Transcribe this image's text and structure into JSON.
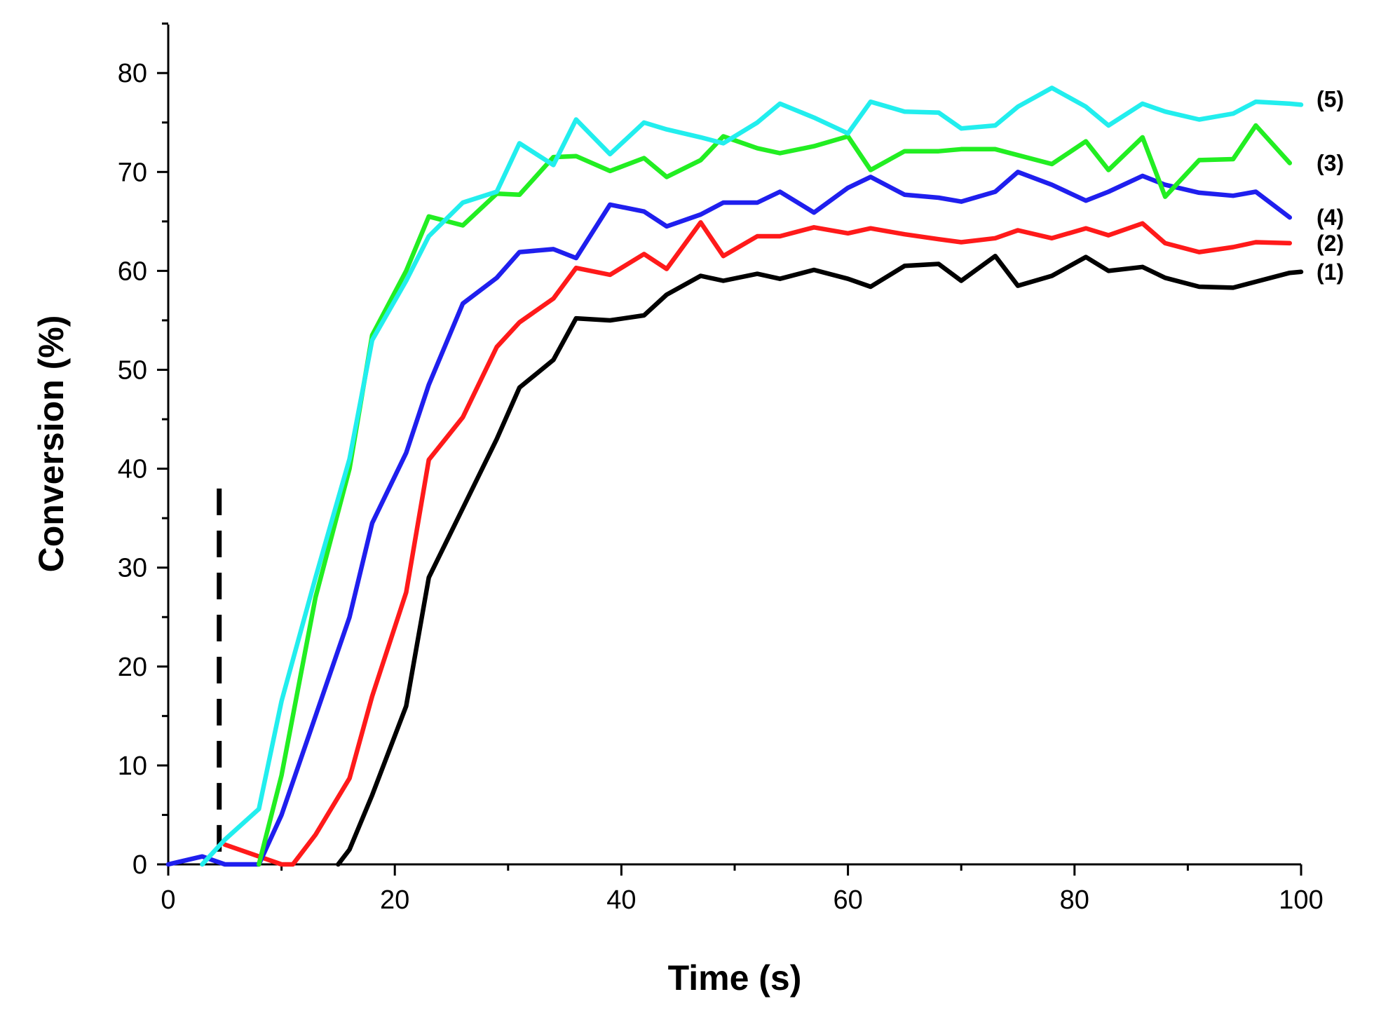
{
  "chart_data": {
    "type": "line",
    "xlabel": "Time (s)",
    "ylabel": "Conversion (%)",
    "xlim": [
      0,
      100
    ],
    "ylim": [
      0,
      85
    ],
    "xticks": [
      0,
      20,
      40,
      60,
      80,
      100
    ],
    "yticks": [
      0,
      10,
      20,
      30,
      40,
      50,
      60,
      70,
      80
    ],
    "grid": false,
    "marker_line": {
      "x": 4.5,
      "y_range": [
        0,
        38
      ],
      "style": "dashed",
      "color": "#000000"
    },
    "series": [
      {
        "name": "(1)",
        "color": "#000000",
        "x": [
          15,
          16,
          18,
          21,
          23,
          26,
          29,
          31,
          34,
          36,
          39,
          42,
          44,
          47,
          49,
          52,
          54,
          57,
          60,
          62,
          65,
          68,
          70,
          73,
          75,
          78,
          81,
          83,
          86,
          88,
          91,
          94,
          96,
          99,
          100
        ],
        "y": [
          0,
          1.5,
          7,
          16,
          29,
          36,
          43,
          48.2,
          51,
          55.2,
          55,
          55.5,
          57.6,
          59.5,
          59,
          59.7,
          59.2,
          60.1,
          59.2,
          58.4,
          60.5,
          60.7,
          59,
          61.5,
          58.5,
          59.5,
          61.4,
          60,
          60.4,
          59.3,
          58.4,
          58.3,
          58.9,
          59.8,
          59.9
        ]
      },
      {
        "name": "(2)",
        "color": "#ff1a1a",
        "x": [
          5,
          8,
          10,
          11,
          13,
          16,
          18,
          21,
          23,
          26,
          29,
          31,
          34,
          36,
          39,
          42,
          44,
          47,
          49,
          52,
          54,
          57,
          60,
          62,
          65,
          68,
          70,
          73,
          75,
          78,
          81,
          83,
          86,
          88,
          91,
          94,
          96,
          99
        ],
        "y": [
          2,
          0.8,
          0,
          0,
          3,
          8.7,
          17,
          27.5,
          40.9,
          45.2,
          52.3,
          54.8,
          57.2,
          60.3,
          59.6,
          61.7,
          60.2,
          64.9,
          61.5,
          63.5,
          63.5,
          64.4,
          63.8,
          64.3,
          63.7,
          63.2,
          62.9,
          63.3,
          64.1,
          63.3,
          64.3,
          63.6,
          64.8,
          62.8,
          61.9,
          62.4,
          62.9,
          62.8
        ]
      },
      {
        "name": "(3)",
        "color": "#22ee22",
        "x": [
          8,
          10,
          13,
          16,
          18,
          21,
          23,
          26,
          29,
          31,
          34,
          36,
          39,
          42,
          44,
          47,
          49,
          52,
          54,
          57,
          60,
          62,
          65,
          68,
          70,
          73,
          75,
          78,
          81,
          83,
          86,
          88,
          91,
          94,
          96,
          99
        ],
        "y": [
          0,
          9,
          27,
          40,
          53.5,
          60,
          65.5,
          64.6,
          67.8,
          67.7,
          71.5,
          71.6,
          70.1,
          71.4,
          69.5,
          71.2,
          73.6,
          72.4,
          71.9,
          72.6,
          73.6,
          70.2,
          72.1,
          72.1,
          72.3,
          72.3,
          71.7,
          70.8,
          73.1,
          70.2,
          73.5,
          67.5,
          71.2,
          71.3,
          74.7,
          70.9
        ]
      },
      {
        "name": "(4)",
        "color": "#1f1fee",
        "x": [
          0,
          3,
          5,
          8,
          10,
          13,
          16,
          18,
          21,
          23,
          26,
          29,
          31,
          34,
          36,
          39,
          42,
          44,
          47,
          49,
          52,
          54,
          57,
          60,
          62,
          65,
          68,
          70,
          73,
          75,
          78,
          81,
          83,
          86,
          88,
          91,
          94,
          96,
          99
        ],
        "y": [
          0,
          0.8,
          0,
          0,
          5,
          15,
          25,
          34.5,
          41.6,
          48.5,
          56.7,
          59.3,
          61.9,
          62.2,
          61.3,
          66.7,
          66,
          64.5,
          65.7,
          66.9,
          66.9,
          68,
          65.9,
          68.4,
          69.5,
          67.7,
          67.4,
          67,
          68,
          70,
          68.7,
          67.1,
          68,
          69.6,
          68.7,
          67.9,
          67.6,
          68,
          65.4
        ]
      },
      {
        "name": "(5)",
        "color": "#22eeee",
        "x": [
          3,
          5,
          8,
          10,
          13,
          16,
          18,
          21,
          23,
          26,
          29,
          31,
          34,
          36,
          39,
          42,
          44,
          47,
          49,
          52,
          54,
          57,
          60,
          62,
          65,
          68,
          70,
          73,
          75,
          78,
          81,
          83,
          86,
          88,
          91,
          94,
          96,
          99,
          100
        ],
        "y": [
          0,
          2.5,
          5.6,
          16.5,
          29,
          41,
          53,
          59,
          63.5,
          66.9,
          68,
          72.9,
          70.7,
          75.3,
          71.8,
          75,
          74.3,
          73.5,
          72.9,
          75,
          76.9,
          75.5,
          73.9,
          77.1,
          76.1,
          76,
          74.4,
          74.7,
          76.6,
          78.5,
          76.6,
          74.7,
          76.9,
          76.1,
          75.3,
          75.9,
          77.1,
          76.9,
          76.8
        ]
      }
    ]
  }
}
